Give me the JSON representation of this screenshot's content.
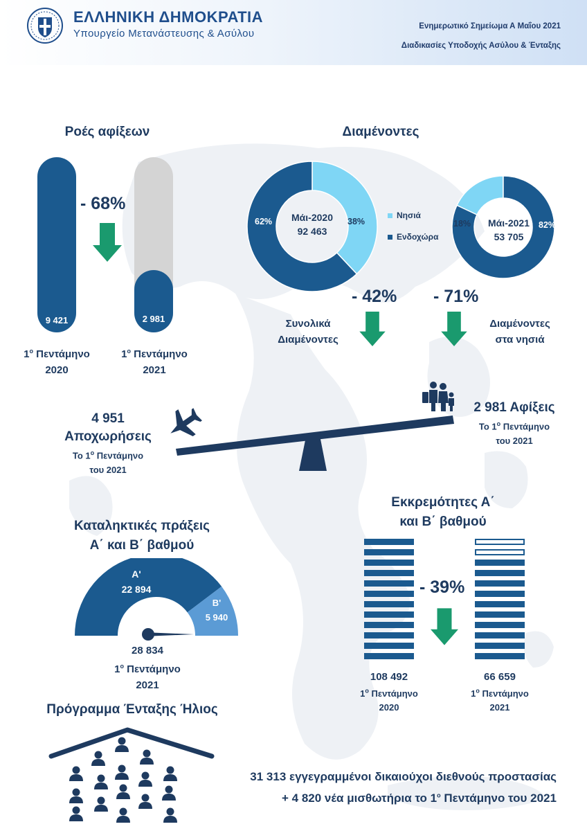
{
  "header": {
    "org_title": "ΕΛΛΗΝΙΚΗ ΔΗΜΟΚΡΑΤΙΑ",
    "org_subtitle": "Υπουργείο Μετανάστευσης & Ασύλου",
    "doc_title": "Ενημερωτικό Σημείωμα Α Μαΐου 2021",
    "doc_subtitle": "Διαδικασίες Υποδοχής Ασύλου & Ένταξης"
  },
  "arrivals": {
    "title": "Ροές αφίξεων",
    "change": "- 68%",
    "bars": [
      {
        "value_label": "9 421",
        "value": 9421,
        "period_num": "1",
        "period_sup": "ο",
        "period_text": " Πεντάμηνο",
        "year": "2020"
      },
      {
        "value_label": "2 981",
        "value": 2981,
        "period_num": "1",
        "period_sup": "ο",
        "period_text": " Πεντάμηνο",
        "year": "2021"
      }
    ]
  },
  "residents": {
    "title": "Διαμένοντες",
    "legend": [
      "Νησιά",
      "Ενδοχώρα"
    ],
    "donut_2020": {
      "label": "Μάι-2020",
      "total": "92 463",
      "islands_pct": 38,
      "mainland_pct": 62,
      "islands_label": "38%",
      "mainland_label": "62%"
    },
    "donut_2021": {
      "label": "Μάι-2021",
      "total": "53 705",
      "islands_pct": 18,
      "mainland_pct": 82,
      "islands_label": "18%",
      "mainland_label": "82%"
    },
    "change_total": "- 42%",
    "change_total_label_1": "Συνολικά",
    "change_total_label_2": "Διαμένοντες",
    "change_islands": "- 71%",
    "change_islands_label_1": "Διαμένοντες",
    "change_islands_label_2": "στα νησιά"
  },
  "balance": {
    "departures_value": "4 951",
    "departures_label": "Αποχωρήσεις",
    "departures_period_1": "Το 1",
    "departures_period_sup": "ο",
    "departures_period_2": " Πεντάμηνο",
    "departures_period_year": "του 2021",
    "arrivals_value": "2 981 Αφίξεις",
    "arrivals_period_1": "Το 1",
    "arrivals_period_sup": "ο",
    "arrivals_period_2": " Πεντάμηνο",
    "arrivals_period_year": "του 2021"
  },
  "decisions": {
    "title_1": "Καταληκτικές πράξεις",
    "title_2": "Α΄ και Β΄ βαθμού",
    "a_label": "Α'",
    "a_value": "22 894",
    "b_label": "Β'",
    "b_value": "5 940",
    "total": "28 834",
    "period_num": "1",
    "period_sup": "ο",
    "period_text": " Πεντάμηνο",
    "year": "2021",
    "colors": {
      "a": "#1b5a8f",
      "b": "#5b9bd5"
    }
  },
  "pending": {
    "title_1": "Εκκρεμότητες Α΄",
    "title_2": "και Β΄ βαθμού",
    "change": "- 39%",
    "left_value": "108 492",
    "left_period_num": "1",
    "left_period_sup": "ο",
    "left_period_text": " Πεντάμηνο",
    "left_year": "2020",
    "right_value": "66 659",
    "right_period_num": "1",
    "right_period_sup": "ο",
    "right_period_text": " Πεντάμηνο",
    "right_year": "2021"
  },
  "helios": {
    "title": "Πρόγραμμα Ένταξης Ήλιος",
    "line_1": "31 313 εγγεγραμμένοι δικαιούχοι διεθνούς προστασίας",
    "line_2a": "+ 4 820 νέα μισθωτήρια το 1",
    "line_2sup": "ο",
    "line_2b": "  Πεντάμηνο του 2021"
  },
  "colors": {
    "primary": "#1b5a8f",
    "light": "#7fd6f5",
    "dark_text": "#1e3a5f",
    "arrow": "#1a9a6e",
    "grey_bar": "#d4d4d4"
  }
}
